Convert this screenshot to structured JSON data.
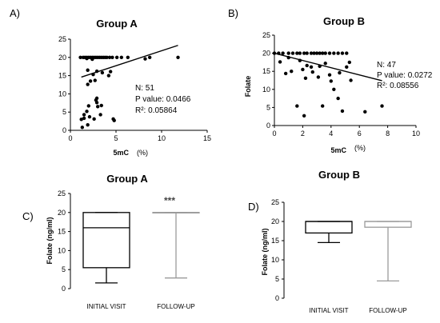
{
  "chart_data": [
    {
      "panel": "A)",
      "type": "scatter",
      "title": "Group A",
      "xlabel": "5mC",
      "xunit": "(%)",
      "ylabel": "",
      "xlim": [
        0,
        15
      ],
      "ylim": [
        0,
        25
      ],
      "xticks": [
        "0",
        "5",
        "10",
        "15"
      ],
      "yticks": [
        "0",
        "5",
        "10",
        "15",
        "20",
        "25"
      ],
      "points": [
        [
          1.1,
          20
        ],
        [
          1.4,
          20
        ],
        [
          1.6,
          20
        ],
        [
          1.8,
          20
        ],
        [
          2.0,
          20
        ],
        [
          2.2,
          20
        ],
        [
          2.4,
          20
        ],
        [
          2.6,
          20
        ],
        [
          2.8,
          20
        ],
        [
          3.0,
          20
        ],
        [
          3.2,
          20
        ],
        [
          3.4,
          20
        ],
        [
          3.6,
          20
        ],
        [
          3.8,
          20
        ],
        [
          4.0,
          20
        ],
        [
          4.3,
          20
        ],
        [
          4.6,
          20
        ],
        [
          5.1,
          20
        ],
        [
          5.6,
          20
        ],
        [
          6.3,
          20
        ],
        [
          8.2,
          19.6
        ],
        [
          8.7,
          20
        ],
        [
          11.8,
          20
        ],
        [
          1.8,
          19.7
        ],
        [
          2.4,
          19.5
        ],
        [
          1.9,
          16.5
        ],
        [
          2.9,
          16.2
        ],
        [
          3.5,
          15.8
        ],
        [
          4.4,
          16.1
        ],
        [
          4.2,
          15.0
        ],
        [
          2.5,
          15.3
        ],
        [
          2.2,
          13.5
        ],
        [
          1.9,
          12.6
        ],
        [
          2.7,
          13.7
        ],
        [
          2.9,
          8.8
        ],
        [
          2.8,
          8.3
        ],
        [
          2.9,
          7.6
        ],
        [
          3.0,
          6.5
        ],
        [
          3.4,
          6.8
        ],
        [
          2.0,
          6.7
        ],
        [
          1.8,
          5.2
        ],
        [
          1.5,
          4.3
        ],
        [
          1.5,
          3.3
        ],
        [
          2.1,
          3.7
        ],
        [
          2.6,
          3.1
        ],
        [
          1.2,
          3.0
        ],
        [
          1.9,
          1.5
        ],
        [
          4.7,
          3.1
        ],
        [
          4.8,
          2.7
        ],
        [
          3.3,
          4.3
        ],
        [
          1.3,
          0.8
        ]
      ],
      "trend": {
        "x1": 1.2,
        "y1": 14.6,
        "x2": 11.8,
        "y2": 23.3
      },
      "stats": [
        "N: 51",
        "P value: 0.0466",
        "R²: 0.05864"
      ]
    },
    {
      "panel": "B)",
      "type": "scatter",
      "title": "Group B",
      "xlabel": "5mC",
      "xunit": "(%)",
      "ylabel": "Folate",
      "xlim": [
        0,
        10
      ],
      "ylim": [
        0,
        25
      ],
      "xticks": [
        "0",
        "2",
        "4",
        "6",
        "8",
        "10"
      ],
      "yticks": [
        "0",
        "5",
        "10",
        "15",
        "20",
        "25"
      ],
      "points": [
        [
          0.0,
          20
        ],
        [
          0.3,
          20
        ],
        [
          0.6,
          20
        ],
        [
          1.0,
          20
        ],
        [
          1.3,
          20
        ],
        [
          1.6,
          20
        ],
        [
          1.8,
          20
        ],
        [
          2.1,
          20
        ],
        [
          2.3,
          20
        ],
        [
          2.6,
          20
        ],
        [
          2.8,
          20
        ],
        [
          3.0,
          20
        ],
        [
          3.2,
          20
        ],
        [
          3.4,
          20
        ],
        [
          3.6,
          20
        ],
        [
          3.9,
          20
        ],
        [
          4.2,
          20
        ],
        [
          4.5,
          20
        ],
        [
          4.8,
          20
        ],
        [
          5.1,
          20
        ],
        [
          0.4,
          17.6
        ],
        [
          1.0,
          18.8
        ],
        [
          1.8,
          18.0
        ],
        [
          0.8,
          14.4
        ],
        [
          1.2,
          15.0
        ],
        [
          2.0,
          15.5
        ],
        [
          2.3,
          16.6
        ],
        [
          2.6,
          16.2
        ],
        [
          3.2,
          16.4
        ],
        [
          3.6,
          17.2
        ],
        [
          2.7,
          14.8
        ],
        [
          3.1,
          13.4
        ],
        [
          2.2,
          13.1
        ],
        [
          3.9,
          14.0
        ],
        [
          4.6,
          14.6
        ],
        [
          4.0,
          12.3
        ],
        [
          5.3,
          17.5
        ],
        [
          5.1,
          16.2
        ],
        [
          1.6,
          5.4
        ],
        [
          3.4,
          5.4
        ],
        [
          2.1,
          2.7
        ],
        [
          4.2,
          10.0
        ],
        [
          4.5,
          7.5
        ],
        [
          6.4,
          3.8
        ],
        [
          7.6,
          5.4
        ],
        [
          4.8,
          4.0
        ],
        [
          5.4,
          12.5
        ]
      ],
      "trend": {
        "x1": 0.0,
        "y1": 20.0,
        "x2": 7.6,
        "y2": 12.4
      },
      "stats": [
        "N: 47",
        "P value: 0.0272",
        "R²: 0.08556"
      ]
    },
    {
      "panel": "C)",
      "type": "box",
      "title": "Group A",
      "ylabel": "Folate (ng/ml)",
      "ylim": [
        0,
        25
      ],
      "yticks": [
        "0",
        "5",
        "10",
        "15",
        "20",
        "25"
      ],
      "categories": [
        "INITIAL VISIT",
        "FOLLOW-UP"
      ],
      "boxes": [
        {
          "min": 1.5,
          "q1": 5.5,
          "median": 16.0,
          "q3": 20.0,
          "max": 20.0,
          "color": "#000000"
        },
        {
          "min": 2.8,
          "q1": 20.0,
          "median": 20.0,
          "q3": 20.0,
          "max": 20.0,
          "color": "#9a9a9a"
        }
      ],
      "annotation": "***"
    },
    {
      "panel": "D)",
      "type": "box",
      "title": "Group B",
      "ylabel": "Folate (ng/ml)",
      "ylim": [
        0,
        25
      ],
      "yticks": [
        "0",
        "5",
        "10",
        "15",
        "20",
        "25"
      ],
      "categories": [
        "INITIAL VISIT",
        "FOLLOW-UP"
      ],
      "boxes": [
        {
          "min": 14.5,
          "q1": 17.0,
          "median": 20.0,
          "q3": 20.0,
          "max": 20.0,
          "color": "#000000"
        },
        {
          "min": 4.5,
          "q1": 18.5,
          "median": 20.0,
          "q3": 20.0,
          "max": 20.0,
          "color": "#9a9a9a"
        }
      ]
    }
  ]
}
